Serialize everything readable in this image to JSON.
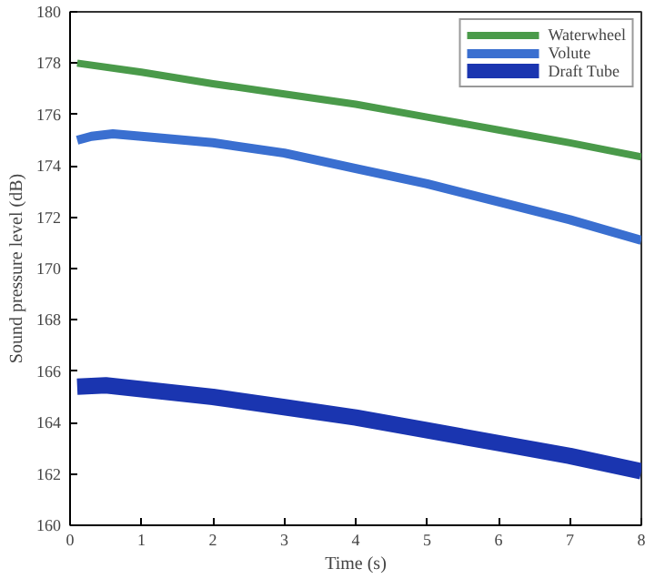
{
  "chart_data": {
    "type": "line",
    "xlabel": "Time (s)",
    "ylabel": "Sound pressure level (dB)",
    "xlim": [
      0,
      8
    ],
    "ylim": [
      160,
      180
    ],
    "xticks": [
      0,
      1,
      2,
      3,
      4,
      5,
      6,
      7,
      8
    ],
    "yticks": [
      160,
      162,
      164,
      166,
      168,
      170,
      172,
      174,
      176,
      178,
      180
    ],
    "grid": false,
    "legend": "top right",
    "marker": "none",
    "line_style": "solid",
    "series": [
      {
        "name": "Waterwheel",
        "color": "#4a9a4a",
        "x": [
          0.1,
          1,
          2,
          3,
          4,
          5,
          6,
          7,
          8
        ],
        "values": [
          178.0,
          177.65,
          177.2,
          176.8,
          176.4,
          175.9,
          175.4,
          174.9,
          174.35
        ]
      },
      {
        "name": "Volute",
        "color": "#3a6fd0",
        "x": [
          0.1,
          0.3,
          0.6,
          1,
          2,
          3,
          4,
          5,
          6,
          7,
          8
        ],
        "values": [
          175.0,
          175.15,
          175.25,
          175.15,
          174.9,
          174.5,
          173.9,
          173.3,
          172.6,
          171.9,
          171.1
        ]
      },
      {
        "name": "Draft Tube",
        "color": "#1a35b0",
        "x": [
          0.1,
          0.5,
          1,
          2,
          3,
          4,
          5,
          6,
          7,
          8
        ],
        "values": [
          165.4,
          165.45,
          165.3,
          165.0,
          164.6,
          164.2,
          163.7,
          163.2,
          162.7,
          162.1
        ]
      }
    ]
  }
}
